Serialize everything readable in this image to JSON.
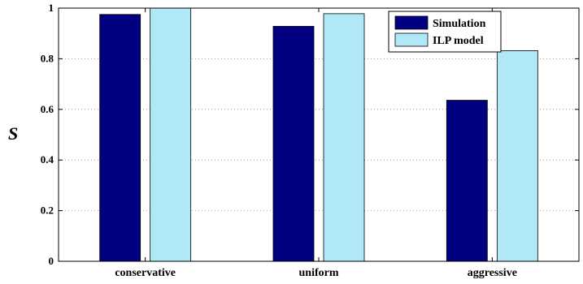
{
  "chart_data": {
    "type": "bar",
    "categories": [
      "conservative",
      "uniform",
      "aggressive"
    ],
    "series": [
      {
        "name": "Simulation",
        "values": [
          0.975,
          0.928,
          0.636
        ],
        "color": "#000080"
      },
      {
        "name": "ILP model",
        "values": [
          1.0,
          0.978,
          0.832
        ],
        "color": "#b0e8f8"
      }
    ],
    "ylabel": "S",
    "xlabel": "",
    "title": "",
    "ylim": [
      0,
      1
    ],
    "yticks": [
      "0",
      "0.2",
      "0.4",
      "0.6",
      "0.8",
      "1"
    ],
    "yticks_values": [
      0,
      0.2,
      0.4,
      0.6,
      0.8,
      1
    ],
    "grid": "horizontal dotted",
    "legend_position": "top-right"
  }
}
